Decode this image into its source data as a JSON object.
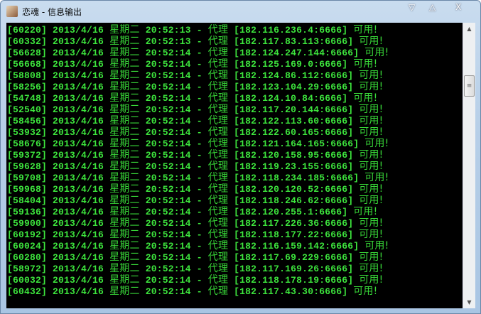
{
  "window": {
    "title": "恋魂 - 信息输出",
    "minimize": "▽",
    "maximize": "△",
    "close": "X"
  },
  "scrollbar": {
    "up": "▲",
    "down": "▼",
    "thumb": "≡",
    "position_fraction": 0.2
  },
  "colors": {
    "text": "#3de53d",
    "background": "#000000"
  },
  "lines": [
    {
      "id": "[60220]",
      "date": "2013/4/16",
      "weekday": "星期二",
      "time": "20:52:13",
      "sep": "-",
      "label": "代理",
      "addr": "[182.116.236.4:6666]",
      "status": "可用!"
    },
    {
      "id": "[60332]",
      "date": "2013/4/16",
      "weekday": "星期二",
      "time": "20:52:13",
      "sep": "-",
      "label": "代理",
      "addr": "[182.117.83.113:6666]",
      "status": "可用!"
    },
    {
      "id": "[56628]",
      "date": "2013/4/16",
      "weekday": "星期二",
      "time": "20:52:14",
      "sep": "-",
      "label": "代理",
      "addr": "[182.124.247.144:6666]",
      "status": "可用!"
    },
    {
      "id": "[56668]",
      "date": "2013/4/16",
      "weekday": "星期二",
      "time": "20:52:14",
      "sep": "-",
      "label": "代理",
      "addr": "[182.125.169.0:6666]",
      "status": "可用!"
    },
    {
      "id": "[58808]",
      "date": "2013/4/16",
      "weekday": "星期二",
      "time": "20:52:14",
      "sep": "-",
      "label": "代理",
      "addr": "[182.124.86.112:6666]",
      "status": "可用!"
    },
    {
      "id": "[58256]",
      "date": "2013/4/16",
      "weekday": "星期二",
      "time": "20:52:14",
      "sep": "-",
      "label": "代理",
      "addr": "[182.123.104.29:6666]",
      "status": "可用!"
    },
    {
      "id": "[54748]",
      "date": "2013/4/16",
      "weekday": "星期二",
      "time": "20:52:14",
      "sep": "-",
      "label": "代理",
      "addr": "[182.124.10.84:6666]",
      "status": "可用!"
    },
    {
      "id": "[52540]",
      "date": "2013/4/16",
      "weekday": "星期二",
      "time": "20:52:14",
      "sep": "-",
      "label": "代理",
      "addr": "[182.117.20.144:6666]",
      "status": "可用!"
    },
    {
      "id": "[58456]",
      "date": "2013/4/16",
      "weekday": "星期二",
      "time": "20:52:14",
      "sep": "-",
      "label": "代理",
      "addr": "[182.122.113.60:6666]",
      "status": "可用!"
    },
    {
      "id": "[53932]",
      "date": "2013/4/16",
      "weekday": "星期二",
      "time": "20:52:14",
      "sep": "-",
      "label": "代理",
      "addr": "[182.122.60.165:6666]",
      "status": "可用!"
    },
    {
      "id": "[58676]",
      "date": "2013/4/16",
      "weekday": "星期二",
      "time": "20:52:14",
      "sep": "-",
      "label": "代理",
      "addr": "[182.121.164.165:6666]",
      "status": "可用!"
    },
    {
      "id": "[59372]",
      "date": "2013/4/16",
      "weekday": "星期二",
      "time": "20:52:14",
      "sep": "-",
      "label": "代理",
      "addr": "[182.120.158.95:6666]",
      "status": "可用!"
    },
    {
      "id": "[59628]",
      "date": "2013/4/16",
      "weekday": "星期二",
      "time": "20:52:14",
      "sep": "-",
      "label": "代理",
      "addr": "[182.119.23.155:6666]",
      "status": "可用!"
    },
    {
      "id": "[59708]",
      "date": "2013/4/16",
      "weekday": "星期二",
      "time": "20:52:14",
      "sep": "-",
      "label": "代理",
      "addr": "[182.118.234.185:6666]",
      "status": "可用!"
    },
    {
      "id": "[59968]",
      "date": "2013/4/16",
      "weekday": "星期二",
      "time": "20:52:14",
      "sep": "-",
      "label": "代理",
      "addr": "[182.120.120.52:6666]",
      "status": "可用!"
    },
    {
      "id": "[58404]",
      "date": "2013/4/16",
      "weekday": "星期二",
      "time": "20:52:14",
      "sep": "-",
      "label": "代理",
      "addr": "[182.118.246.62:6666]",
      "status": "可用!"
    },
    {
      "id": "[59136]",
      "date": "2013/4/16",
      "weekday": "星期二",
      "time": "20:52:14",
      "sep": "-",
      "label": "代理",
      "addr": "[182.120.255.1:6666]",
      "status": "可用!"
    },
    {
      "id": "[59900]",
      "date": "2013/4/16",
      "weekday": "星期二",
      "time": "20:52:14",
      "sep": "-",
      "label": "代理",
      "addr": "[182.117.226.36:6666]",
      "status": "可用!"
    },
    {
      "id": "[60192]",
      "date": "2013/4/16",
      "weekday": "星期二",
      "time": "20:52:14",
      "sep": "-",
      "label": "代理",
      "addr": "[182.118.177.22:6666]",
      "status": "可用!"
    },
    {
      "id": "[60024]",
      "date": "2013/4/16",
      "weekday": "星期二",
      "time": "20:52:14",
      "sep": "-",
      "label": "代理",
      "addr": "[182.116.159.142:6666]",
      "status": "可用!"
    },
    {
      "id": "[60280]",
      "date": "2013/4/16",
      "weekday": "星期二",
      "time": "20:52:14",
      "sep": "-",
      "label": "代理",
      "addr": "[182.117.69.229:6666]",
      "status": "可用!"
    },
    {
      "id": "[58972]",
      "date": "2013/4/16",
      "weekday": "星期二",
      "time": "20:52:14",
      "sep": "-",
      "label": "代理",
      "addr": "[182.117.169.26:6666]",
      "status": "可用!"
    },
    {
      "id": "[60032]",
      "date": "2013/4/16",
      "weekday": "星期二",
      "time": "20:52:14",
      "sep": "-",
      "label": "代理",
      "addr": "[182.118.178.19:6666]",
      "status": "可用!"
    },
    {
      "id": "[60432]",
      "date": "2013/4/16",
      "weekday": "星期二",
      "time": "20:52:14",
      "sep": "-",
      "label": "代理",
      "addr": "[182.117.43.30:6666]",
      "status": "可用!"
    }
  ]
}
